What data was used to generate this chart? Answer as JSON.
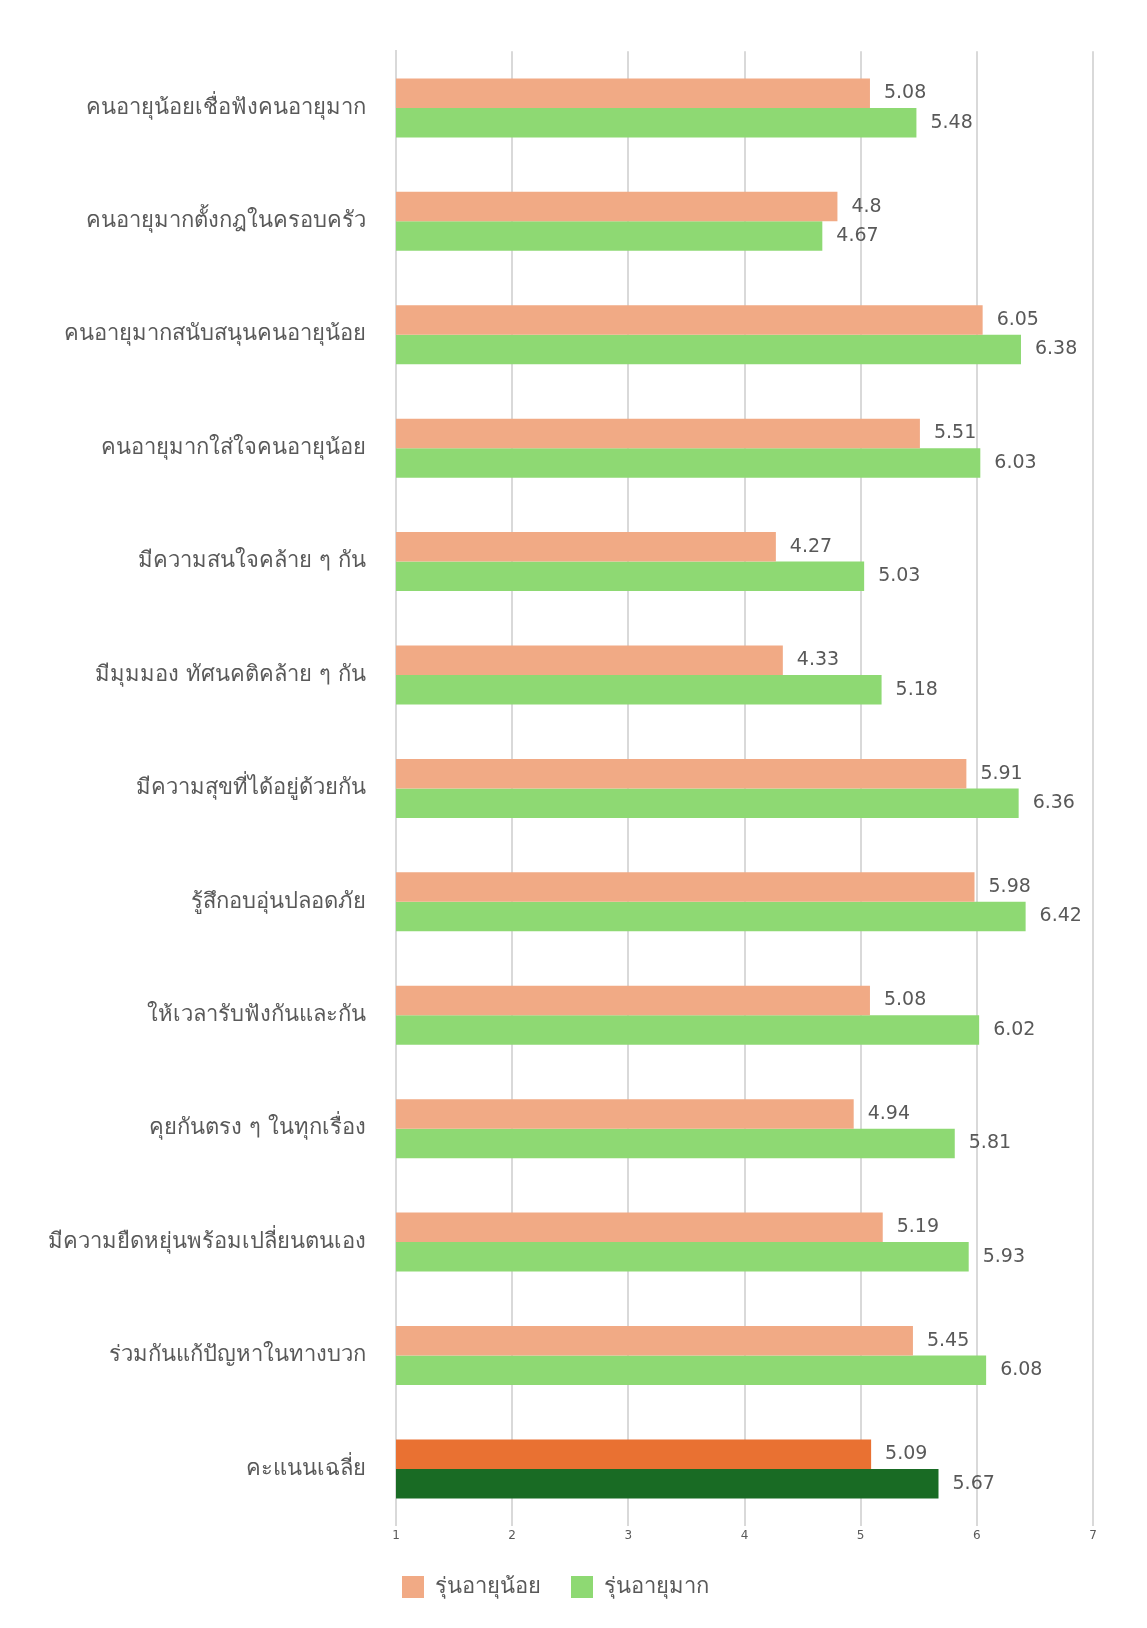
{
  "chart_data": {
    "type": "bar",
    "orientation": "horizontal",
    "categories": [
      "คนอายุน้อยเชื่อฟังคนอายุมาก",
      "คนอายุมากตั้งกฎในครอบครัว",
      "คนอายุมากสนับสนุนคนอายุน้อย",
      "คนอายุมากใส่ใจคนอายุน้อย",
      "มีความสนใจคล้าย ๆ กัน",
      "มีมุมมอง ทัศนคติคล้าย ๆ กัน",
      "มีความสุขที่ได้อยู่ด้วยกัน",
      "รู้สึกอบอุ่นปลอดภัย",
      "ให้เวลารับฟังกันและกัน",
      "คุยกันตรง ๆ ในทุกเรื่อง",
      "มีความยืดหยุ่นพร้อมเปลี่ยนตนเอง",
      "ร่วมกันแก้ปัญหาในทางบวก",
      "คะแนนเฉลี่ย"
    ],
    "series": [
      {
        "name": "รุ่นอายุน้อย",
        "color": "#f1aa85",
        "colors": [
          "#f1aa85",
          "#f1aa85",
          "#f1aa85",
          "#f1aa85",
          "#f1aa85",
          "#f1aa85",
          "#f1aa85",
          "#f1aa85",
          "#f1aa85",
          "#f1aa85",
          "#f1aa85",
          "#f1aa85",
          "#e97132"
        ],
        "values": [
          5.08,
          4.8,
          6.05,
          5.51,
          4.27,
          4.33,
          5.91,
          5.98,
          5.08,
          4.94,
          5.19,
          5.45,
          5.09
        ]
      },
      {
        "name": "รุ่นอายุมาก",
        "color": "#8ed973",
        "colors": [
          "#8ed973",
          "#8ed973",
          "#8ed973",
          "#8ed973",
          "#8ed973",
          "#8ed973",
          "#8ed973",
          "#8ed973",
          "#8ed973",
          "#8ed973",
          "#8ed973",
          "#8ed973",
          "#196b24"
        ],
        "values": [
          5.48,
          4.67,
          6.38,
          6.03,
          5.03,
          5.18,
          6.36,
          6.42,
          6.02,
          5.81,
          5.93,
          6.08,
          5.67
        ]
      }
    ],
    "xlim": [
      1,
      7
    ],
    "xticks": [
      1,
      2,
      3,
      4,
      5,
      6,
      7
    ],
    "grid": "x",
    "legend": "bottom",
    "data_labels": true
  }
}
